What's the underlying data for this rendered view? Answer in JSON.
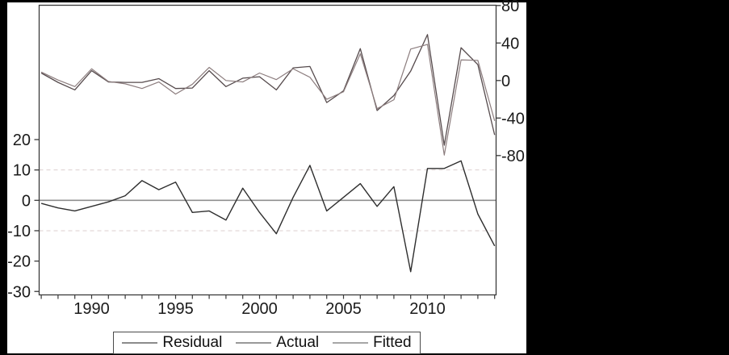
{
  "colors": {
    "background": "#000000",
    "panel": "#ffffff",
    "frame": "#3a3a3a",
    "axis_text": "#1a1a1a",
    "grid_dashed": "#dccfcf",
    "zero_line": "#8f8f8f"
  },
  "chart_data": {
    "type": "line",
    "title": "",
    "xlabel": "",
    "ylabel_left": "",
    "ylabel_right": "",
    "x": [
      1987,
      1988,
      1989,
      1990,
      1991,
      1992,
      1993,
      1994,
      1995,
      1996,
      1997,
      1998,
      1999,
      2000,
      2001,
      2002,
      2003,
      2004,
      2005,
      2006,
      2007,
      2008,
      2009,
      2010,
      2011,
      2012,
      2013,
      2014
    ],
    "series": [
      {
        "name": "Residual",
        "axis": "left",
        "color": "#2e2e2e",
        "width": 1.4,
        "values": [
          -1,
          -2.5,
          -3.5,
          -2,
          -0.5,
          1.5,
          6.5,
          3.5,
          6,
          -4,
          -3.5,
          -6.5,
          4,
          -4,
          -11,
          1,
          11.5,
          -3.5,
          1,
          5.5,
          -2,
          4.5,
          -23.5,
          10.5,
          10.5,
          13,
          -4.5,
          -15
        ]
      },
      {
        "name": "Actual",
        "axis": "right",
        "color": "#564b4d",
        "width": 1.3,
        "values": [
          8,
          -2,
          -10,
          10.5,
          -1.5,
          -2,
          -2,
          2,
          -8.5,
          -8,
          10.5,
          -6.5,
          2.5,
          4,
          -10,
          13.5,
          15,
          -23.5,
          -11,
          34,
          -32,
          -16,
          10,
          49,
          -69,
          35,
          17,
          -58
        ]
      },
      {
        "name": "Fitted",
        "axis": "right",
        "color": "#8c7d7e",
        "width": 1.2,
        "values": [
          9,
          0.5,
          -6.5,
          12.5,
          -1,
          -3.5,
          -8.5,
          -1.5,
          -14.5,
          -4,
          14,
          0,
          -1.5,
          8,
          1,
          12.5,
          3.5,
          -20,
          -12,
          28.5,
          -30,
          -20.5,
          33.5,
          38.5,
          -79.5,
          22,
          21.5,
          -43
        ]
      }
    ],
    "left_axis": {
      "ticks": [
        20,
        10,
        0,
        -10,
        -20,
        -30
      ],
      "lim": [
        -31.5,
        33.5
      ]
    },
    "right_axis": {
      "ticks": [
        80,
        40,
        0,
        -40,
        -80
      ],
      "lim": [
        -80.5,
        80.5
      ]
    },
    "x_axis": {
      "tick_labels": [
        1990,
        1995,
        2000,
        2005,
        2010
      ],
      "lim": [
        1986.9,
        2014.1
      ]
    },
    "gridlines": {
      "dashed_at_left_values": [
        10,
        -10
      ],
      "solid_zero_left": 0
    },
    "legend_position": "bottom"
  },
  "legend": {
    "items": [
      {
        "label": "Residual",
        "swatch_color": "#8b8b8b"
      },
      {
        "label": "Actual",
        "swatch_color": "#999999"
      },
      {
        "label": "Fitted",
        "swatch_color": "#a6a6a6"
      }
    ]
  }
}
